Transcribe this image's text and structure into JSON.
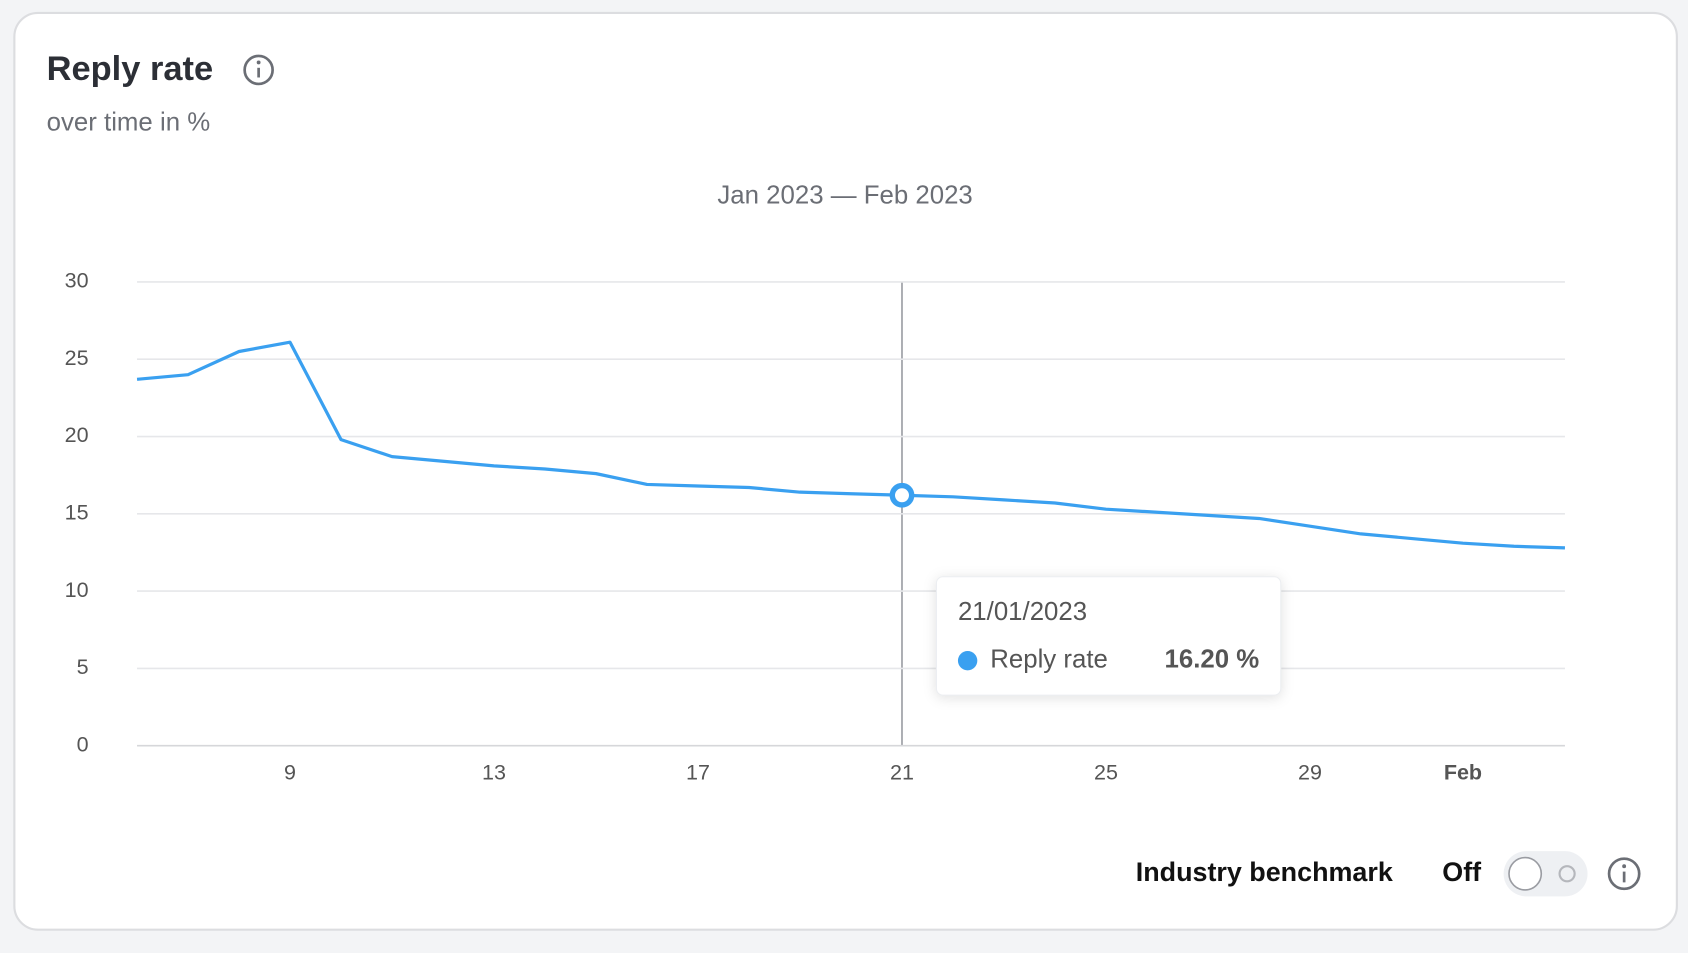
{
  "chart_data": {
    "type": "line",
    "title": "Reply rate",
    "subtitle": "over time in %",
    "period": "Jan 2023 — Feb 2023",
    "categories": [
      null,
      null,
      null,
      "9",
      null,
      null,
      null,
      "13",
      null,
      null,
      null,
      "17",
      null,
      null,
      null,
      "21",
      null,
      null,
      null,
      "25",
      null,
      null,
      null,
      "29",
      null,
      null,
      "Feb",
      null,
      null
    ],
    "series": [
      {
        "name": "Reply rate",
        "color": "#3aa0f0",
        "values": [
          23.7,
          24.0,
          25.5,
          26.1,
          19.8,
          18.7,
          18.4,
          18.1,
          17.9,
          17.6,
          16.9,
          16.8,
          16.7,
          16.4,
          16.3,
          16.2,
          16.1,
          15.9,
          15.7,
          15.3,
          15.1,
          14.9,
          14.7,
          14.2,
          13.7,
          13.4,
          13.1,
          12.9,
          12.8
        ]
      }
    ],
    "ylim": [
      0,
      30
    ],
    "yticks": [
      0,
      5,
      10,
      15,
      20,
      25,
      30
    ],
    "grid": true,
    "tooltip": {
      "date": "21/01/2023",
      "value": 16.2,
      "value_label": "16.20 %"
    }
  },
  "controls": {
    "benchmark_label": "Industry benchmark",
    "benchmark_state": "Off"
  }
}
